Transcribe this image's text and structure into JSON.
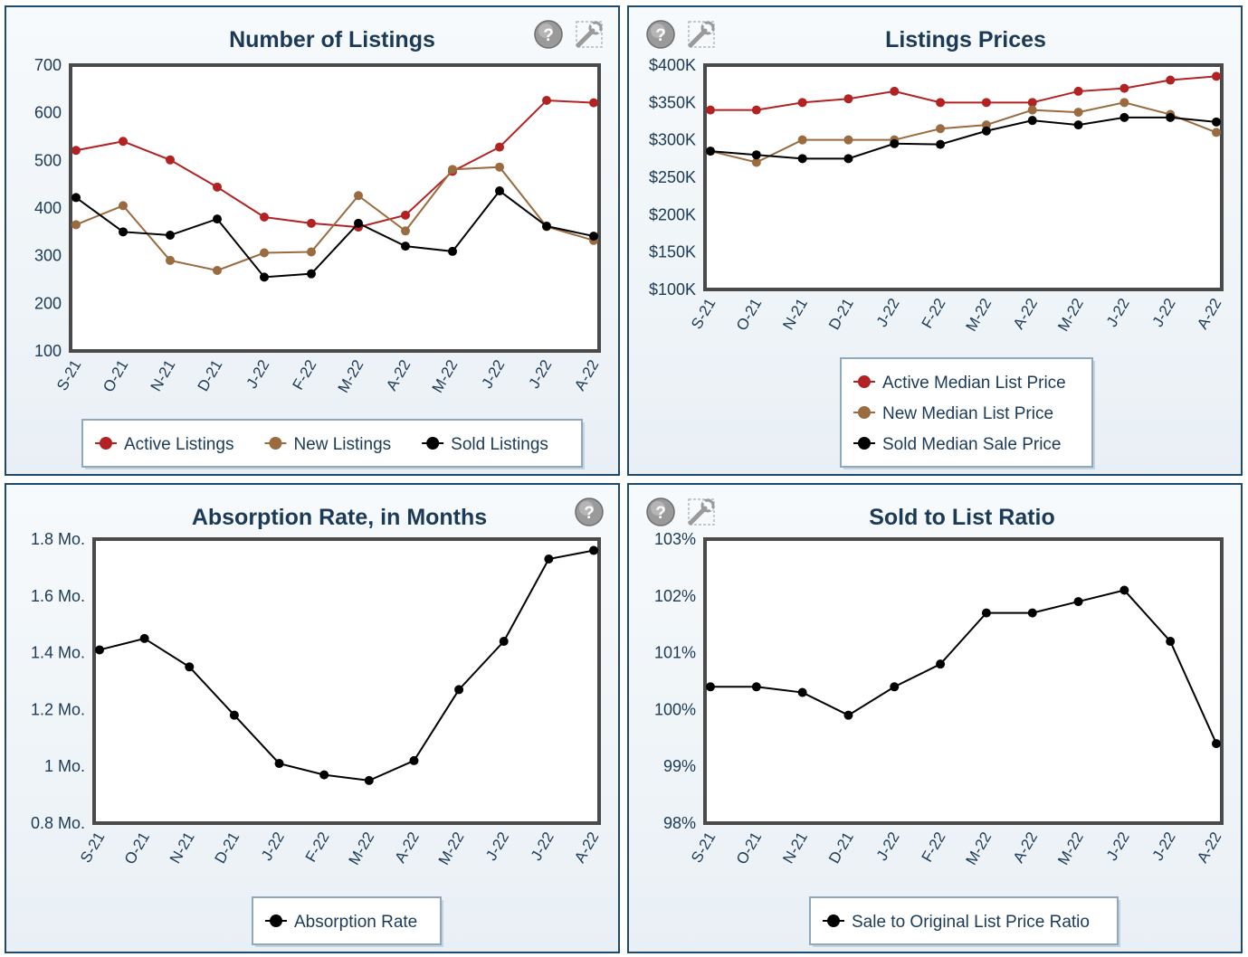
{
  "chart_data": [
    {
      "id": "p1",
      "type": "line",
      "title": "Number of Listings",
      "categories": [
        "S-21",
        "O-21",
        "N-21",
        "D-21",
        "J-22",
        "F-22",
        "M-22",
        "A-22",
        "M-22",
        "J-22",
        "J-22",
        "A-22"
      ],
      "y_ticks": [
        "100",
        "200",
        "300",
        "400",
        "500",
        "600",
        "700"
      ],
      "ylim": [
        100,
        700
      ],
      "series": [
        {
          "name": "Active Listings",
          "color": "#b22222",
          "values": [
            521,
            540,
            501,
            444,
            381,
            368,
            360,
            385,
            477,
            528,
            626,
            621
          ]
        },
        {
          "name": "New Listings",
          "color": "#9a6b3f",
          "values": [
            365,
            405,
            290,
            269,
            306,
            308,
            426,
            352,
            481,
            486,
            361,
            332
          ]
        },
        {
          "name": "Sold Listings",
          "color": "#000000",
          "values": [
            422,
            350,
            343,
            377,
            255,
            262,
            368,
            320,
            309,
            436,
            362,
            341
          ]
        }
      ],
      "legend_layout": "row",
      "help_icon": "help-icon",
      "tool_icon": "settings-icon"
    },
    {
      "id": "p2",
      "type": "line",
      "title": "Listings Prices",
      "categories": [
        "S-21",
        "O-21",
        "N-21",
        "D-21",
        "J-22",
        "F-22",
        "M-22",
        "A-22",
        "M-22",
        "J-22",
        "J-22",
        "A-22"
      ],
      "y_ticks": [
        "$100K",
        "$150K",
        "$200K",
        "$250K",
        "$300K",
        "$350K",
        "$400K"
      ],
      "ylim": [
        100000,
        400000
      ],
      "series": [
        {
          "name": "Active Median List Price",
          "color": "#b22222",
          "values": [
            340000,
            340000,
            350000,
            355000,
            365000,
            350000,
            350000,
            350000,
            365000,
            369000,
            380000,
            385000
          ]
        },
        {
          "name": "New Median List Price",
          "color": "#9a6b3f",
          "values": [
            285000,
            270000,
            300000,
            300000,
            300000,
            315000,
            320000,
            340000,
            337000,
            350000,
            334000,
            310000
          ]
        },
        {
          "name": "Sold Median Sale Price",
          "color": "#000000",
          "values": [
            285000,
            280000,
            275000,
            275000,
            295000,
            294000,
            312000,
            326000,
            320000,
            330000,
            330000,
            324000
          ]
        }
      ],
      "legend_layout": "column",
      "help_icon": "help-icon",
      "tool_icon": "settings-icon"
    },
    {
      "id": "p3",
      "type": "line",
      "title": "Absorption Rate, in Months",
      "categories": [
        "S-21",
        "O-21",
        "N-21",
        "D-21",
        "J-22",
        "F-22",
        "M-22",
        "A-22",
        "M-22",
        "J-22",
        "J-22",
        "A-22"
      ],
      "y_ticks": [
        "0.8 Mo.",
        "1 Mo.",
        "1.2 Mo.",
        "1.4 Mo.",
        "1.6 Mo.",
        "1.8 Mo."
      ],
      "ylim": [
        0.8,
        1.8
      ],
      "series": [
        {
          "name": "Absorption Rate",
          "color": "#000000",
          "values": [
            1.41,
            1.45,
            1.35,
            1.18,
            1.01,
            0.97,
            0.95,
            1.02,
            1.27,
            1.44,
            1.73,
            1.76
          ]
        }
      ],
      "legend_layout": "row",
      "help_icon": "help-icon"
    },
    {
      "id": "p4",
      "type": "line",
      "title": "Sold to List Ratio",
      "categories": [
        "S-21",
        "O-21",
        "N-21",
        "D-21",
        "J-22",
        "F-22",
        "M-22",
        "A-22",
        "M-22",
        "J-22",
        "J-22",
        "A-22"
      ],
      "y_ticks": [
        "98%",
        "99%",
        "100%",
        "101%",
        "102%",
        "103%"
      ],
      "ylim": [
        98,
        103
      ],
      "series": [
        {
          "name": "Sale to Original List Price Ratio",
          "color": "#000000",
          "values": [
            100.4,
            100.4,
            100.3,
            99.9,
            100.4,
            100.8,
            101.7,
            101.7,
            101.9,
            102.1,
            101.2,
            99.4
          ]
        }
      ],
      "legend_layout": "row",
      "help_icon": "help-icon",
      "tool_icon": "settings-icon"
    }
  ]
}
